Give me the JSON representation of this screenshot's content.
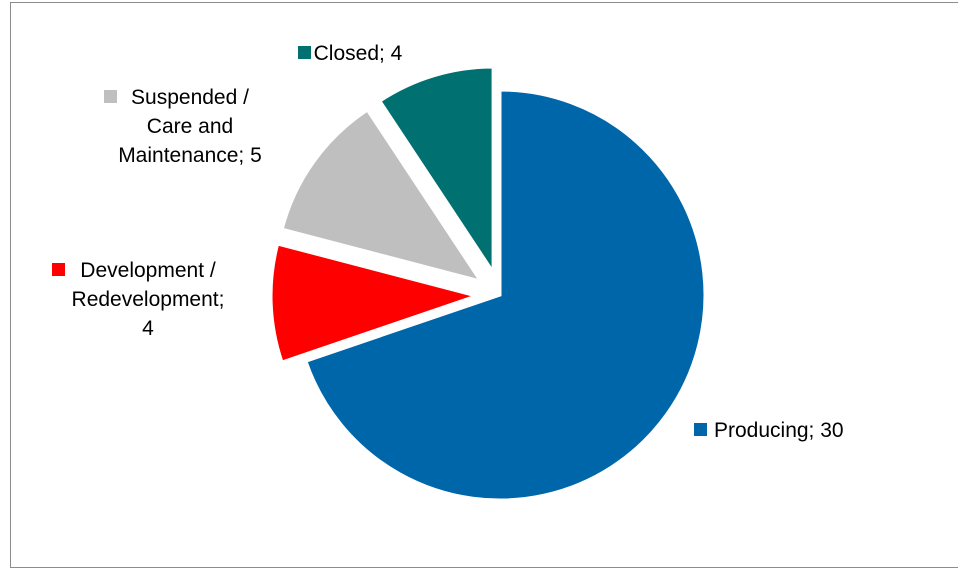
{
  "chart_data": {
    "type": "pie",
    "slices": [
      {
        "label": "Producing",
        "value": 30,
        "color": "#0066AA",
        "exploded": false,
        "label_lines": [
          "Producing; 30"
        ]
      },
      {
        "label": "Development / Redevelopment",
        "value": 4,
        "color": "#FF0000",
        "exploded": true,
        "label_lines": [
          "Development /",
          "Redevelopment;",
          "4"
        ]
      },
      {
        "label": "Suspended / Care and Maintenance",
        "value": 5,
        "color": "#BFBFBF",
        "exploded": true,
        "label_lines": [
          "Suspended /",
          "Care and",
          "Maintenance; 5"
        ]
      },
      {
        "label": "Closed",
        "value": 4,
        "color": "#007070",
        "exploded": true,
        "label_lines": [
          "Closed; 4"
        ]
      }
    ],
    "legend": "none",
    "data_labels": "category; value with color key"
  }
}
